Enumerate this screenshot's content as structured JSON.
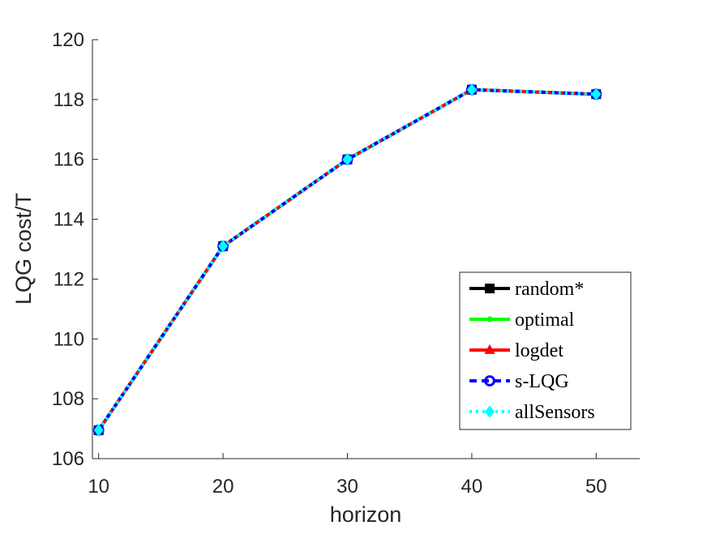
{
  "chart_data": {
    "type": "line",
    "title": "",
    "xlabel": "horizon",
    "ylabel": "LQG cost/T",
    "x": [
      10,
      20,
      30,
      40,
      50
    ],
    "xlim": [
      9.5,
      53.5
    ],
    "ylim": [
      106,
      120
    ],
    "xticks": [
      "10",
      "20",
      "30",
      "40",
      "50"
    ],
    "yticks": [
      "106",
      "108",
      "110",
      "112",
      "114",
      "116",
      "118",
      "120"
    ],
    "grid": false,
    "legend_position": "bottom-right",
    "series": [
      {
        "name": "random*",
        "values": [
          106.95,
          113.1,
          116.0,
          118.33,
          118.18
        ],
        "color": "#000000",
        "line_style": "solid",
        "marker": "square"
      },
      {
        "name": "optimal",
        "values": [
          106.95,
          113.1,
          116.0,
          118.33,
          118.18
        ],
        "color": "#00ff00",
        "line_style": "solid",
        "marker": "dot"
      },
      {
        "name": "logdet",
        "values": [
          106.95,
          113.1,
          116.0,
          118.33,
          118.18
        ],
        "color": "#ff0000",
        "line_style": "solid",
        "marker": "triangle"
      },
      {
        "name": "s-LQG",
        "values": [
          106.95,
          113.1,
          116.0,
          118.33,
          118.18
        ],
        "color": "#0000ff",
        "line_style": "dashed",
        "marker": "circle"
      },
      {
        "name": "allSensors",
        "values": [
          106.95,
          113.1,
          116.0,
          118.33,
          118.18
        ],
        "color": "#00ffff",
        "line_style": "dotted",
        "marker": "diamond"
      }
    ]
  }
}
